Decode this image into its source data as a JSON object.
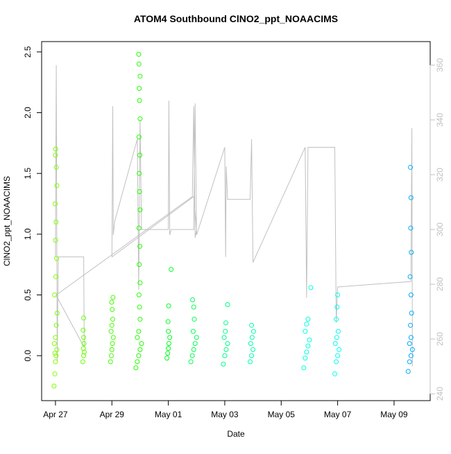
{
  "chart_data": {
    "type": "scatter",
    "title": "ATOM4 Southbound ClNO2_ppt_NOAACIMS",
    "x_label": "Date",
    "y_label": "ClNO2_ppt_NOAACIMS",
    "xlim": [
      -0.49,
      13.28
    ],
    "ylim": [
      -0.37,
      2.585
    ],
    "y2lim": [
      237.5,
      368.6
    ],
    "xticks": [
      {
        "value": 0,
        "label": "Apr 27"
      },
      {
        "value": 2,
        "label": "Apr 29"
      },
      {
        "value": 4,
        "label": "May 01"
      },
      {
        "value": 6,
        "label": "May 03"
      },
      {
        "value": 8,
        "label": "May 05"
      },
      {
        "value": 10,
        "label": "May 07"
      },
      {
        "value": 12,
        "label": "May 09"
      }
    ],
    "yticks": [
      {
        "value": 0,
        "label": "0.0"
      },
      0.5,
      {
        "value": 1,
        "label": "1.0"
      },
      1.5,
      {
        "value": 2,
        "label": "2.0"
      },
      2.5
    ],
    "y2ticks": [
      240,
      260,
      280,
      300,
      320,
      340,
      360
    ],
    "line_color": "#c0c0c0",
    "series": [
      {
        "color": "#80ff00",
        "x": [
          -0.05,
          -0.02,
          0,
          0.02,
          0.05,
          -0.04,
          0,
          0.03,
          0.06,
          -0.03,
          0.01,
          0.04,
          0,
          0.02,
          -0.01,
          0.05,
          0.03,
          0,
          0.01,
          -0.02
        ],
        "values": [
          -0.25,
          -0.15,
          -0.05,
          0,
          0.05,
          0.1,
          0.15,
          0.25,
          0.35,
          0.5,
          0.65,
          0.8,
          0.95,
          1.1,
          1.25,
          1.4,
          1.55,
          1.65,
          1.7,
          0.02
        ]
      },
      {
        "color": "#66ff00",
        "x": [
          0.97,
          1.0,
          1.02,
          0.99,
          1.01,
          1.0,
          0.98,
          1.0
        ],
        "values": [
          -0.05,
          0,
          0.03,
          0.06,
          0.1,
          0.15,
          0.21,
          0.31
        ]
      },
      {
        "color": "#44ff00",
        "x": [
          1.95,
          1.98,
          2.0,
          2.02,
          2.05,
          1.97,
          2.0,
          2.03,
          2.01,
          1.99,
          2.04
        ],
        "values": [
          -0.05,
          0,
          0.05,
          0.1,
          0.15,
          0.2,
          0.25,
          0.3,
          0.38,
          0.44,
          0.48
        ]
      },
      {
        "color": "#22ff00",
        "x": [
          2.85,
          2.9,
          2.95,
          3.0,
          3.05,
          2.9,
          2.95,
          3.0,
          2.98,
          2.96,
          3.0,
          2.97,
          2.99,
          2.96,
          3.0,
          2.98,
          2.97,
          2.99,
          2.96,
          3.0,
          2.98,
          2.97,
          3.0,
          2.96,
          2.95
        ],
        "values": [
          -0.1,
          -0.05,
          0,
          0.05,
          0.1,
          0.15,
          0.2,
          0.3,
          0.4,
          0.5,
          0.6,
          0.75,
          0.9,
          1.05,
          1.2,
          1.35,
          1.5,
          1.65,
          1.8,
          1.95,
          2.1,
          2.2,
          2.3,
          2.4,
          2.48
        ]
      },
      {
        "color": "#00ff22",
        "x": [
          3.95,
          3.98,
          4.0,
          4.02,
          4.05,
          4.0,
          3.99,
          4.01,
          4.1
        ],
        "values": [
          -0.02,
          0.02,
          0.06,
          0.1,
          0.15,
          0.2,
          0.28,
          0.41,
          0.71
        ]
      },
      {
        "color": "#00ff55",
        "x": [
          4.8,
          4.85,
          4.9,
          4.95,
          5.0,
          4.88,
          4.92,
          4.9,
          4.86
        ],
        "values": [
          -0.05,
          0,
          0.05,
          0.1,
          0.15,
          0.2,
          0.3,
          0.4,
          0.46
        ]
      },
      {
        "color": "#00ff88",
        "x": [
          5.95,
          6.0,
          6.05,
          6.1,
          5.98,
          6.02,
          6.04,
          6.1
        ],
        "values": [
          -0.07,
          0,
          0.05,
          0.1,
          0.15,
          0.2,
          0.27,
          0.42
        ]
      },
      {
        "color": "#00ffaa",
        "x": [
          6.9,
          6.95,
          7.0,
          6.92,
          6.97,
          7.02,
          6.95
        ],
        "values": [
          -0.05,
          0,
          0.05,
          0.1,
          0.15,
          0.2,
          0.25
        ]
      },
      {
        "color": "#00ffdd",
        "x": [
          8.8,
          8.85,
          8.9,
          8.95,
          9.0,
          8.85,
          8.9,
          8.95,
          9.05
        ],
        "values": [
          -0.1,
          -0.02,
          0.03,
          0.08,
          0.13,
          0.2,
          0.26,
          0.3,
          0.56
        ]
      },
      {
        "color": "#00ffee",
        "x": [
          9.9,
          9.95,
          10.0,
          10.05,
          9.92,
          9.97,
          10.02,
          9.95,
          9.98,
          10.0
        ],
        "values": [
          -0.15,
          -0.05,
          0,
          0.05,
          0.1,
          0.15,
          0.2,
          0.3,
          0.4,
          0.5
        ]
      },
      {
        "color": "#00aaff",
        "x": [
          12.5,
          12.55,
          12.6,
          12.65,
          12.55,
          12.6,
          12.58,
          12.62,
          12.6,
          12.57,
          12.61,
          12.59,
          12.6,
          12.58
        ],
        "values": [
          -0.13,
          -0.05,
          0,
          0.05,
          0.1,
          0.15,
          0.25,
          0.35,
          0.5,
          0.65,
          0.85,
          1.05,
          1.3,
          1.55
        ]
      }
    ],
    "line_x": [
      0,
      0.03,
      0.06,
      0.1,
      1.0,
      1.02,
      0.02,
      4.85,
      4.9,
      4.95,
      5.0,
      4.9,
      2.0,
      2.03,
      2.05,
      2.1,
      2.9,
      2.95,
      3.0,
      3.05,
      4.0,
      4.02,
      4.05,
      4.1,
      4.9,
      4.95,
      5.0,
      6.0,
      6.03,
      6.05,
      6.1,
      6.9,
      6.95,
      7.0,
      8.85,
      8.9,
      8.95,
      9.0,
      9.9,
      9.95,
      10.0,
      12.6,
      12.63,
      12.65
    ],
    "line_values": [
      290,
      360,
      252,
      290,
      290,
      257,
      276,
      312,
      345,
      297,
      300,
      312,
      290,
      345,
      298,
      303,
      333,
      278,
      340,
      300,
      300,
      347,
      298,
      300,
      300,
      346,
      298,
      330,
      290,
      323,
      311,
      311,
      333,
      288,
      330,
      275,
      330,
      330,
      330,
      266,
      279,
      281,
      337,
      250
    ]
  }
}
